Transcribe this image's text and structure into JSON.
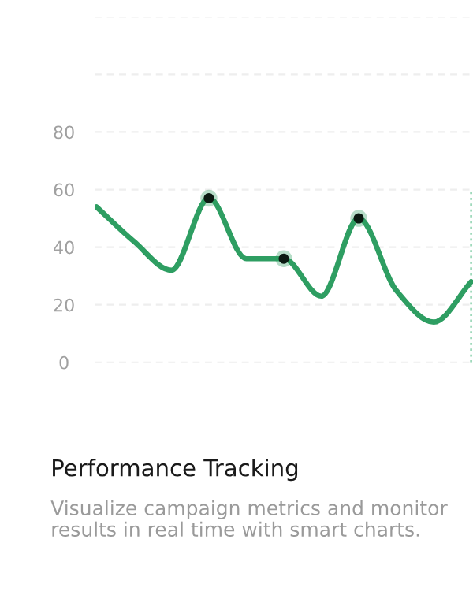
{
  "chart_data": {
    "type": "line",
    "title": "Performance Tracking",
    "subtitle": "Visualize campaign metrics and monitor results in real time with smart charts.",
    "categories": [
      null,
      null,
      null,
      null,
      null,
      null,
      null,
      null,
      null,
      null,
      null
    ],
    "series": [
      {
        "color": "#2e9e62",
        "values": [
          54,
          42,
          32,
          57,
          36,
          36,
          23,
          50,
          25,
          14,
          28
        ]
      },
      {
        "type": "scatter",
        "color": "#0b1a12",
        "values": [
          null,
          null,
          null,
          57,
          null,
          36,
          null,
          50,
          null,
          null,
          null
        ]
      }
    ],
    "ylim": [
      0,
      120
    ],
    "yticks": [
      0,
      20,
      40,
      60,
      80,
      {
        "value": 100,
        "label": null
      },
      {
        "value": 120,
        "label": null
      }
    ],
    "grid": "y",
    "tick_labels": "y"
  }
}
